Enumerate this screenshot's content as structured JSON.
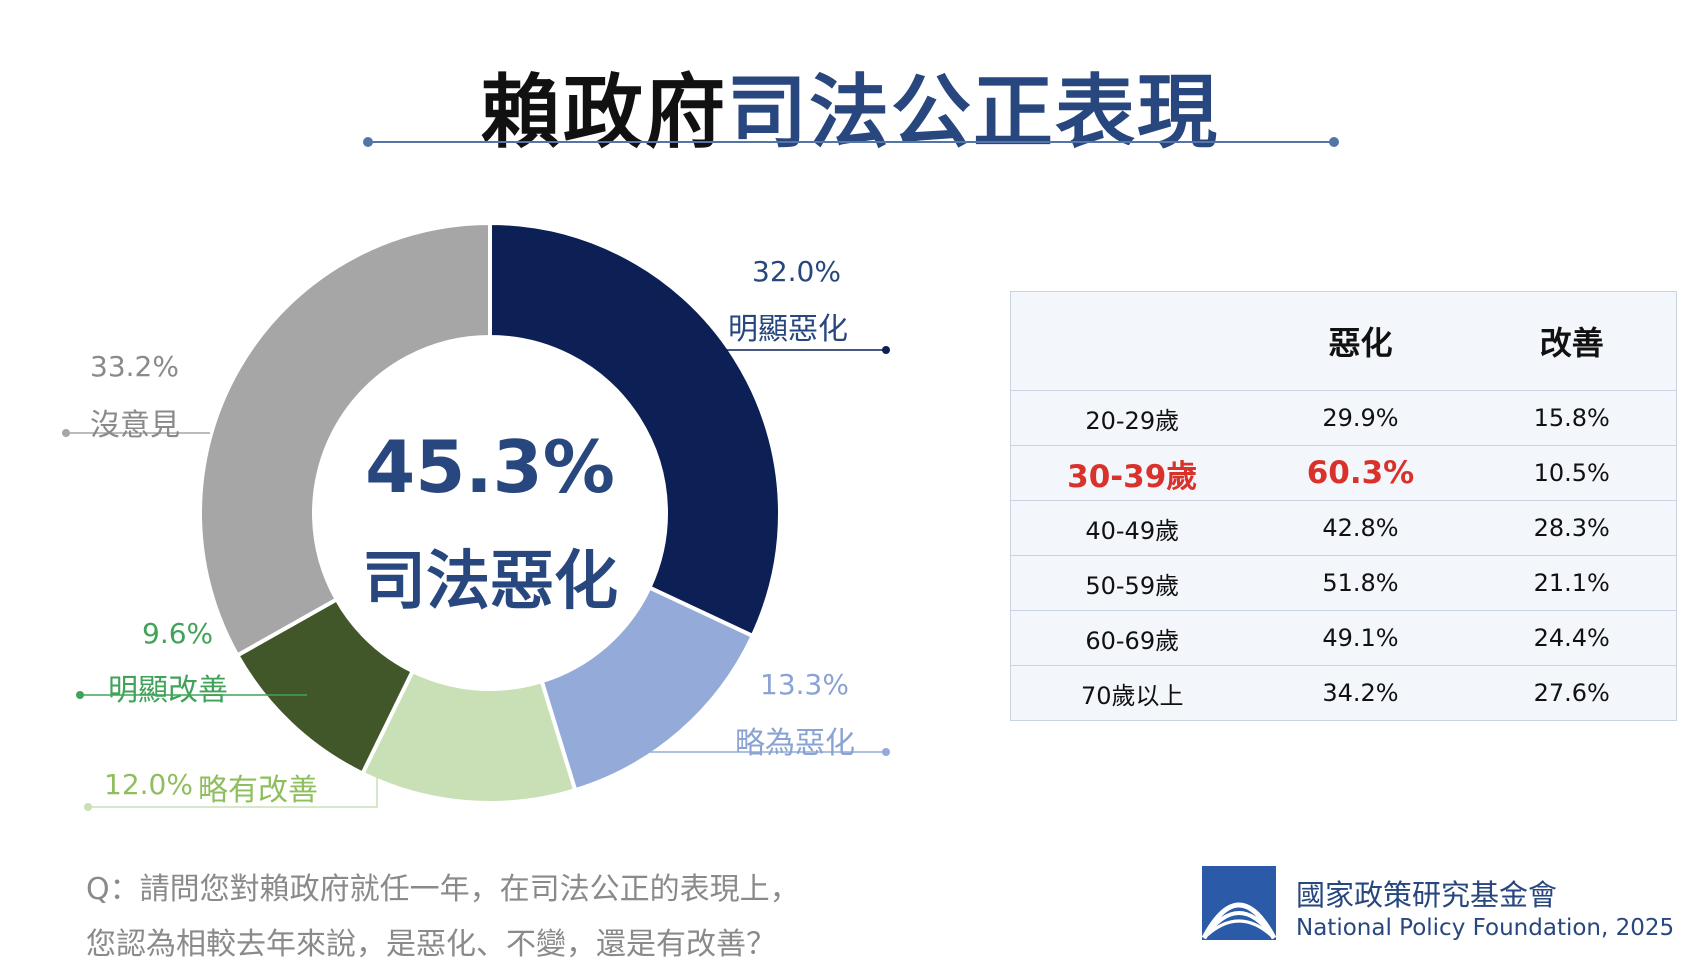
{
  "title": {
    "part1": "賴政府",
    "part2": "司法公正表現"
  },
  "colors": {
    "title_blue": "#27477e",
    "navy": "#0d2056",
    "light_blue": "#94aad8",
    "light_green": "#c9e0b7",
    "dark_green": "#41572a",
    "gray": "#a6a6a6",
    "highlight_red": "#d8322a"
  },
  "chart_data": [
    {
      "type": "pie",
      "categories": [
        "明顯惡化",
        "略為惡化",
        "略有改善",
        "明顯改善",
        "沒意見"
      ],
      "values": [
        32.0,
        13.3,
        12.0,
        9.6,
        33.2
      ],
      "labels": [
        "32.0%",
        "13.3%",
        "12.0%",
        "9.6%",
        "33.2%"
      ],
      "colors": [
        "#0d2056",
        "#94aad8",
        "#c9e0b7",
        "#41572a",
        "#a6a6a6"
      ],
      "center_value": "45.3%",
      "center_label": "司法惡化"
    },
    {
      "type": "table",
      "headers": [
        "",
        "惡化",
        "改善"
      ],
      "rows": [
        {
          "age": "20-29歲",
          "worse": "29.9%",
          "better": "15.8%",
          "highlight": false
        },
        {
          "age": "30-39歲",
          "worse": "60.3%",
          "better": "10.5%",
          "highlight": true
        },
        {
          "age": "40-49歲",
          "worse": "42.8%",
          "better": "28.3%",
          "highlight": false
        },
        {
          "age": "50-59歲",
          "worse": "51.8%",
          "better": "21.1%",
          "highlight": false
        },
        {
          "age": "60-69歲",
          "worse": "49.1%",
          "better": "24.4%",
          "highlight": false
        },
        {
          "age": "70歲以上",
          "worse": "34.2%",
          "better": "27.6%",
          "highlight": false
        }
      ]
    }
  ],
  "question": {
    "line1": "Q：請問您對賴政府就任一年，在司法公正的表現上，",
    "line2": "您認為相較去年來說，是惡化、不變，還是有改善？"
  },
  "organization": {
    "name_zh": "國家政策研究基金會",
    "name_en": "National Policy Foundation, 2025"
  }
}
